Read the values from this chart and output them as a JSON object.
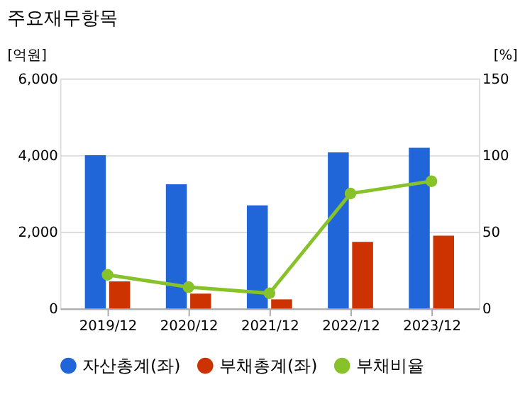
{
  "chart_data": {
    "type": "bar",
    "title": "주요재무항목",
    "ylabel": "[억원]",
    "y2label": "[%]",
    "categories": [
      "2019/12",
      "2020/12",
      "2021/12",
      "2022/12",
      "2023/12"
    ],
    "series": [
      {
        "name": "자산총계(좌)",
        "color": "#2166d9",
        "values": [
          4000,
          3240,
          2690,
          4070,
          4190
        ]
      },
      {
        "name": "부채총계(좌)",
        "color": "#cc3300",
        "values": [
          710,
          390,
          240,
          1740,
          1900
        ]
      },
      {
        "name": "부채비율",
        "color": "#88c22a",
        "type": "line",
        "axis": "y2",
        "values": [
          22,
          14,
          10,
          75,
          83
        ]
      }
    ],
    "ylim": [
      0,
      6000
    ],
    "yticks": [
      0,
      {
        "value": 2000,
        "label": "2,000"
      },
      {
        "value": 4000,
        "label": "4,000"
      },
      {
        "value": 6000,
        "label": "6,000"
      }
    ],
    "y2lim": [
      0,
      150
    ],
    "y2ticks": [
      0,
      50,
      100,
      150
    ],
    "grid": "y",
    "legend": "bottom",
    "marker": "circle"
  }
}
